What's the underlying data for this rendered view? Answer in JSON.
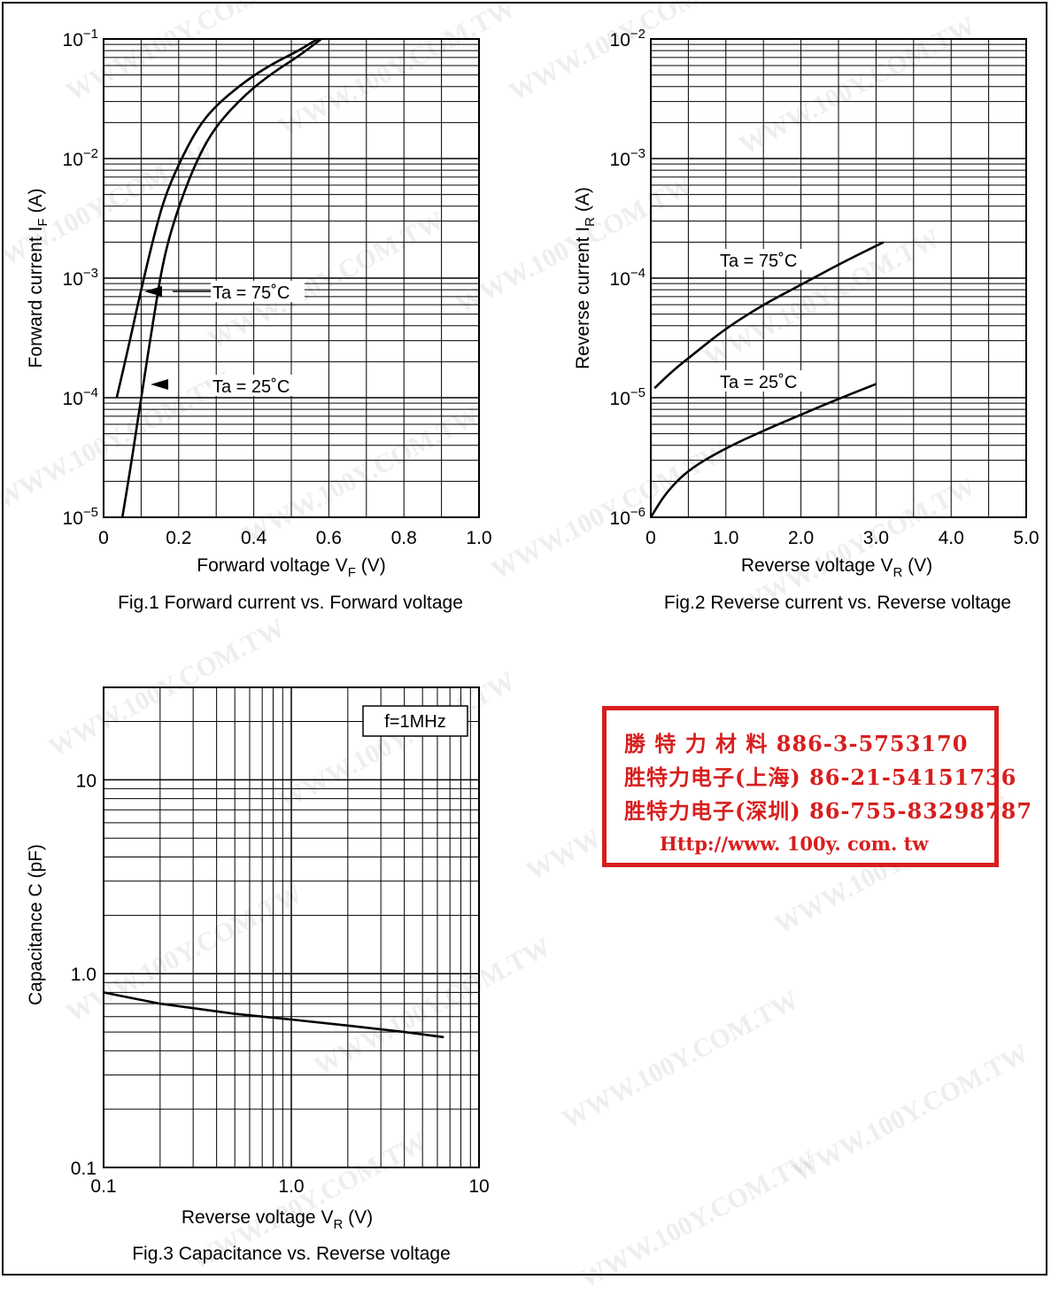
{
  "chart_data": [
    {
      "type": "line",
      "title": "Fig.1  Forward current vs. Forward voltage",
      "xlabel": "Forward voltage   V",
      "xlabel_sub": "F",
      "xlabel_unit": "(V)",
      "ylabel": "Forward current   I",
      "ylabel_sub": "F",
      "ylabel_unit": "(A)",
      "xlim": [
        0,
        1.0
      ],
      "ylim": [
        1e-05,
        0.1
      ],
      "yscale": "log",
      "x_ticks": [
        "0",
        "0.2",
        "0.4",
        "0.6",
        "0.8",
        "1.0"
      ],
      "y_ticks": [
        "10^-5",
        "10^-4",
        "10^-3",
        "10^-2",
        "10^-1"
      ],
      "series": [
        {
          "name": "Ta = 75˚C",
          "x": [
            0.035,
            0.07,
            0.1,
            0.13,
            0.16,
            0.2,
            0.25,
            0.3,
            0.38,
            0.45,
            0.52,
            0.57
          ],
          "y": [
            0.0001,
            0.0003,
            0.0008,
            0.002,
            0.0045,
            0.009,
            0.018,
            0.028,
            0.045,
            0.062,
            0.08,
            0.1
          ]
        },
        {
          "name": "Ta = 25˚C",
          "x": [
            0.05,
            0.075,
            0.1,
            0.13,
            0.16,
            0.2,
            0.25,
            0.3,
            0.38,
            0.45,
            0.52,
            0.58
          ],
          "y": [
            1e-05,
            3e-05,
            0.0001,
            0.0004,
            0.0015,
            0.004,
            0.01,
            0.019,
            0.035,
            0.052,
            0.072,
            0.1
          ]
        }
      ],
      "annotations": [
        "Ta = 75˚C",
        "Ta = 25˚C"
      ]
    },
    {
      "type": "line",
      "title": "Fig.2  Reverse current vs. Reverse voltage",
      "xlabel": "Reverse voltage   V",
      "xlabel_sub": "R",
      "xlabel_unit": "(V)",
      "ylabel": "Reverse current   I",
      "ylabel_sub": "R",
      "ylabel_unit": "(A)",
      "xlim": [
        0,
        5.0
      ],
      "ylim": [
        1e-06,
        0.01
      ],
      "yscale": "log",
      "x_ticks": [
        "0",
        "1.0",
        "2.0",
        "3.0",
        "4.0",
        "5.0"
      ],
      "y_ticks": [
        "10^-6",
        "10^-5",
        "10^-4",
        "10^-3",
        "10^-2"
      ],
      "series": [
        {
          "name": "Ta = 75˚C",
          "x": [
            0.05,
            0.3,
            0.6,
            1.0,
            1.5,
            2.0,
            2.5,
            3.1
          ],
          "y": [
            1.2e-05,
            1.7e-05,
            2.4e-05,
            3.8e-05,
            6e-05,
            8.8e-05,
            0.00013,
            0.0002
          ]
        },
        {
          "name": "Ta = 25˚C",
          "x": [
            0.0,
            0.2,
            0.5,
            1.0,
            1.5,
            2.0,
            2.5,
            3.0
          ],
          "y": [
            1e-06,
            1.6e-06,
            2.5e-06,
            3.8e-06,
            5.3e-06,
            7.2e-06,
            9.8e-06,
            1.3e-05
          ]
        }
      ],
      "annotations": [
        "Ta = 75˚C",
        "Ta = 25˚C"
      ]
    },
    {
      "type": "line",
      "title": "Fig.3   Capacitance vs. Reverse voltage",
      "xlabel": "Reverse voltage   V",
      "xlabel_sub": "R",
      "xlabel_unit": "(V)",
      "ylabel": "Capacitance   C   (pF)",
      "xlim": [
        0.1,
        10
      ],
      "ylim": [
        0.1,
        30
      ],
      "xscale": "log",
      "yscale": "log",
      "x_ticks": [
        "0.1",
        "1.0",
        "10"
      ],
      "y_ticks": [
        "0.1",
        "1.0",
        "10"
      ],
      "legend_box": "f=1MHz",
      "series": [
        {
          "name": "",
          "x": [
            0.1,
            0.2,
            0.5,
            1.0,
            2.0,
            4.0,
            6.5
          ],
          "y": [
            0.8,
            0.7,
            0.62,
            0.58,
            0.54,
            0.5,
            0.47
          ]
        }
      ]
    }
  ],
  "stamp": {
    "line1": "勝 特 力 材 料 886-3-5753170",
    "line2": "胜特力电子(上海) 86-21-54151736",
    "line3": "胜特力电子(深圳) 86-755-83298787",
    "url": "Http://www. 100y. com. tw"
  },
  "watermark_text": "WWW.100Y.COM.TW",
  "colors": {
    "stamp": "#d81e1e",
    "ink": "#000000"
  }
}
